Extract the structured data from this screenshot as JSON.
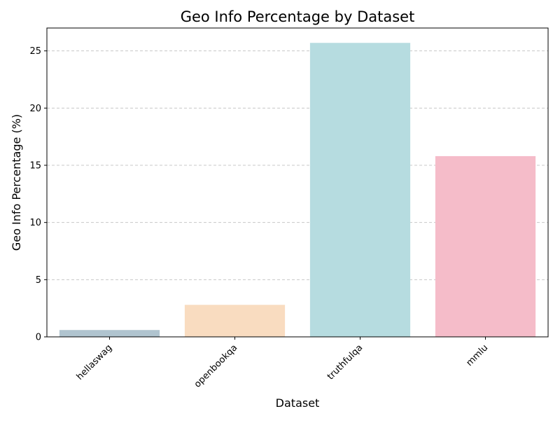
{
  "chart_data": {
    "type": "bar",
    "title": "Geo Info Percentage by Dataset",
    "xlabel": "Dataset",
    "ylabel": "Geo Info Percentage (%)",
    "categories": [
      "hellaswag",
      "openbookqa",
      "truthfulqa",
      "mmlu"
    ],
    "values": [
      0.6,
      2.8,
      25.7,
      15.8
    ],
    "colors": [
      "#b0c4cf",
      "#f9dcc0",
      "#b6dce0",
      "#f5bcc9"
    ],
    "ylim": [
      0,
      27
    ],
    "yticks": [
      0,
      5,
      10,
      15,
      20,
      25
    ],
    "grid": "y-dashed",
    "legend": "none"
  }
}
